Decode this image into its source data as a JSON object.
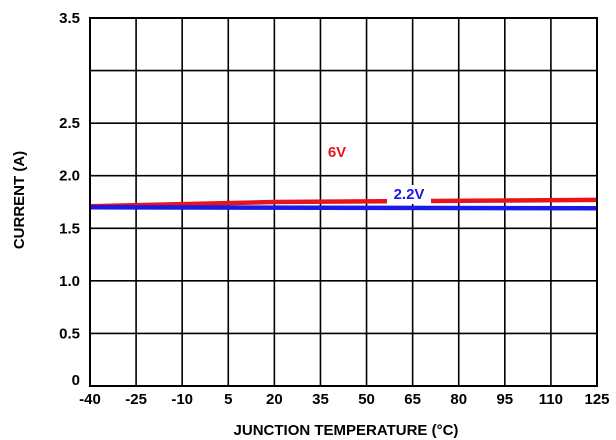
{
  "chart_data": {
    "type": "line",
    "xlabel": "JUNCTION TEMPERATURE (°C)",
    "ylabel": "CURRENT (A)",
    "xlim": [
      -40,
      125
    ],
    "ylim": [
      0,
      3.5
    ],
    "x_ticks": [
      "-40",
      "-25",
      "-10",
      "5",
      "20",
      "35",
      "50",
      "65",
      "80",
      "95",
      "110",
      "125"
    ],
    "y_ticks": [
      "0",
      "0.5",
      "1.0",
      "1.5",
      "2.0",
      "2.5",
      "3.5"
    ],
    "y_tick_values": [
      0,
      0.5,
      1.0,
      1.5,
      2.0,
      2.5,
      3.5
    ],
    "grid": true,
    "series": [
      {
        "name": "6V",
        "color": "#e8141b",
        "points": [
          [
            -40,
            1.71
          ],
          [
            20,
            1.75
          ],
          [
            125,
            1.77
          ]
        ]
      },
      {
        "name": "2.2V",
        "color": "#1a1ae6",
        "points": [
          [
            -40,
            1.7
          ],
          [
            125,
            1.69
          ]
        ]
      }
    ]
  }
}
